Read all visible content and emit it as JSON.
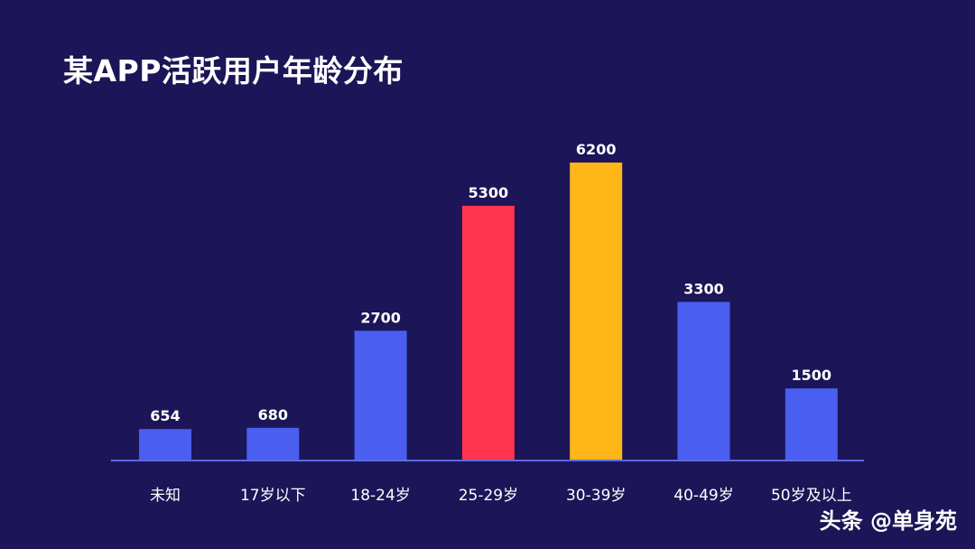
{
  "chart_data": {
    "type": "bar",
    "title": "某APP活跃用户年龄分布",
    "xlabel": "",
    "ylabel": "",
    "categories": [
      "未知",
      "17岁以下",
      "18-24岁",
      "25-29岁",
      "30-39岁",
      "40-49岁",
      "50岁及以上"
    ],
    "values": [
      654,
      680,
      2700,
      5300,
      6200,
      3300,
      1500
    ],
    "ylim": [
      0,
      6200
    ],
    "grid": false,
    "legend": "none",
    "colors": {
      "default_bar": "#4a5ef0",
      "highlight_25_29": "#ff344f",
      "highlight_30_39": "#ffb618",
      "baseline": "#5a6be6",
      "background": "#1c1557",
      "text": "#ffffff"
    }
  },
  "watermark": "头条 @单身苑"
}
